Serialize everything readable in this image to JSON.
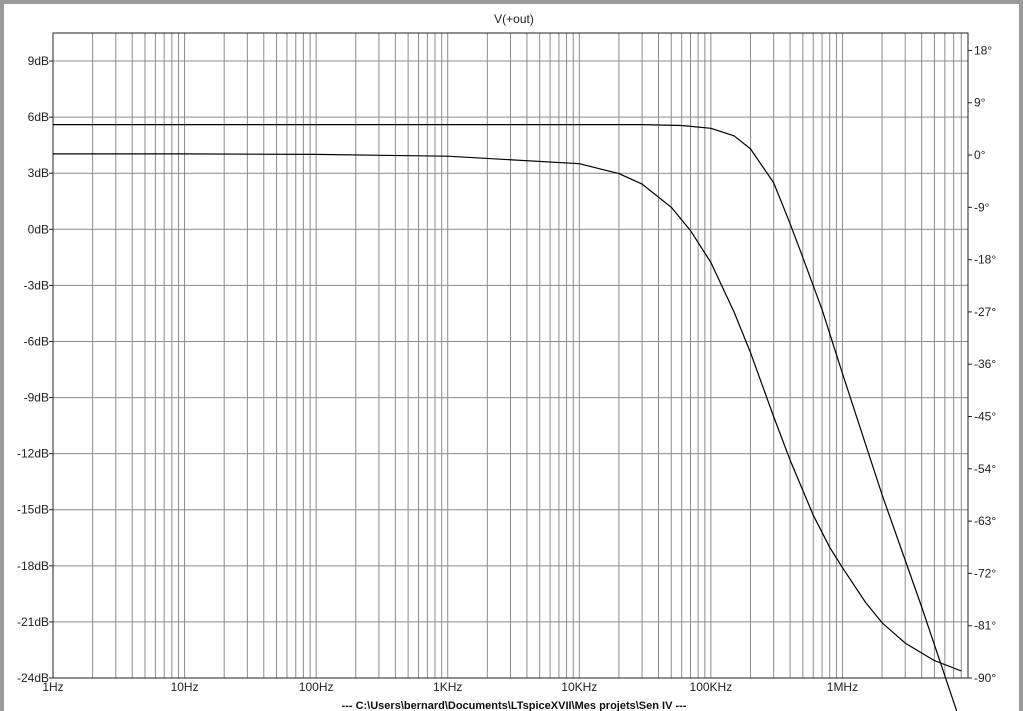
{
  "chart_data": {
    "type": "line",
    "title": "V(+out)",
    "footer": "--- C:\\Users\\bernard\\Documents\\LTspiceXVII\\Mes projets\\Sen IV ---",
    "x_scale": "log",
    "xlim": [
      1,
      9000000
    ],
    "x_ticks": [
      {
        "value": 1,
        "label": "1Hz"
      },
      {
        "value": 10,
        "label": "10Hz"
      },
      {
        "value": 100,
        "label": "100Hz"
      },
      {
        "value": 1000,
        "label": "1KHz"
      },
      {
        "value": 10000,
        "label": "10KHz"
      },
      {
        "value": 100000,
        "label": "100KHz"
      },
      {
        "value": 1000000,
        "label": "1MHz"
      }
    ],
    "y_left": {
      "lim": [
        -24,
        10.5
      ],
      "ticks": [
        {
          "value": 9,
          "label": "9dB"
        },
        {
          "value": 6,
          "label": "6dB"
        },
        {
          "value": 3,
          "label": "3dB"
        },
        {
          "value": 0,
          "label": "0dB"
        },
        {
          "value": -3,
          "label": "-3dB"
        },
        {
          "value": -6,
          "label": "-6dB"
        },
        {
          "value": -9,
          "label": "-9dB"
        },
        {
          "value": -12,
          "label": "-12dB"
        },
        {
          "value": -15,
          "label": "-15dB"
        },
        {
          "value": -18,
          "label": "-18dB"
        },
        {
          "value": -21,
          "label": "-21dB"
        },
        {
          "value": -24,
          "label": "-24dB"
        }
      ]
    },
    "y_right": {
      "lim": [
        -90,
        21
      ],
      "ticks": [
        {
          "value": 18,
          "label": "18°"
        },
        {
          "value": 9,
          "label": "9°"
        },
        {
          "value": 0,
          "label": "0°"
        },
        {
          "value": -9,
          "label": "-9°"
        },
        {
          "value": -18,
          "label": "-18°"
        },
        {
          "value": -27,
          "label": "-27°"
        },
        {
          "value": -36,
          "label": "-36°"
        },
        {
          "value": -45,
          "label": "-45°"
        },
        {
          "value": -54,
          "label": "-54°"
        },
        {
          "value": -63,
          "label": "-63°"
        },
        {
          "value": -72,
          "label": "-72°"
        },
        {
          "value": -81,
          "label": "-81°"
        },
        {
          "value": -90,
          "label": "-90°"
        }
      ]
    },
    "grid": true,
    "series": [
      {
        "axis": "left",
        "color": "#000000",
        "x": [
          1,
          10,
          100,
          1000,
          10000,
          30000,
          60000,
          100000,
          150000,
          200000,
          300000,
          400000,
          500000,
          700000,
          1000000,
          2000000,
          4000000,
          8000000
        ],
        "y": [
          5.6,
          5.6,
          5.6,
          5.6,
          5.6,
          5.6,
          5.55,
          5.4,
          5.0,
          4.3,
          2.5,
          0.3,
          -1.5,
          -4.3,
          -7.7,
          -14.2,
          -20.2,
          -26.5
        ]
      },
      {
        "axis": "right",
        "color": "#000000",
        "x": [
          1,
          10,
          100,
          1000,
          10000,
          20000,
          30000,
          50000,
          70000,
          100000,
          150000,
          200000,
          300000,
          400000,
          600000,
          800000,
          1000000,
          1500000,
          2000000,
          3000000,
          5000000,
          8000000
        ],
        "y": [
          0.2,
          0.2,
          0.1,
          -0.2,
          -1.5,
          -3.2,
          -5,
          -9,
          -13,
          -18.5,
          -27,
          -34,
          -45,
          -52.5,
          -62,
          -67.5,
          -71,
          -77,
          -80.5,
          -84,
          -87,
          -88.8
        ]
      }
    ]
  }
}
